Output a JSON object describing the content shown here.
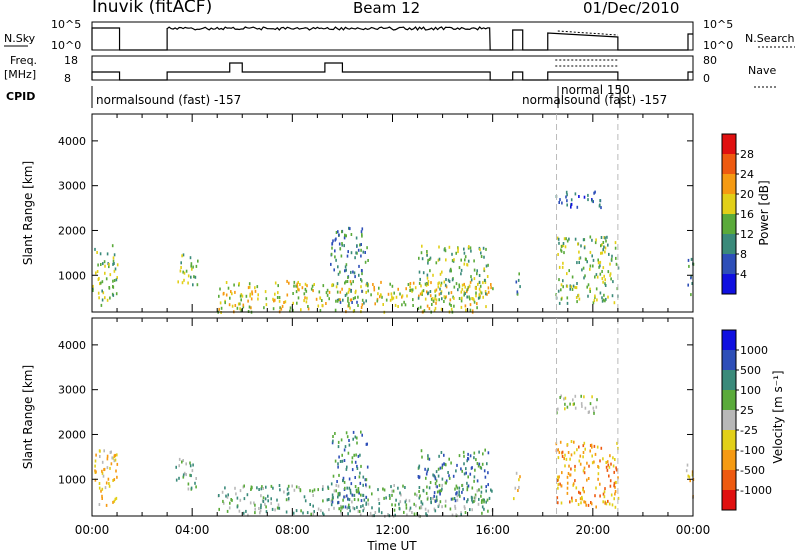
{
  "header": {
    "station": "Inuvik (fitACF)",
    "beam": "Beam 12",
    "date": "01/Dec/2010"
  },
  "labels": {
    "nsky": "N.Sky",
    "nsky_ticks": [
      "10^5",
      "10^0"
    ],
    "nsearch": "N.Search",
    "nsearch_ticks": [
      "10^5",
      "10^0"
    ],
    "freq": "Freq.",
    "freq_unit": "[MHz]",
    "freq_ticks": [
      "18",
      "8"
    ],
    "nave": "Nave",
    "nave_ticks": [
      "80",
      "0"
    ],
    "cpid": "CPID",
    "cpid_events": [
      "normalsound (fast) -157",
      "normal 150",
      "normalsound (fast) -157"
    ],
    "xlabel": "Time UT",
    "xticks": [
      "00:00",
      "04:00",
      "08:00",
      "12:00",
      "16:00",
      "20:00",
      "00:00"
    ],
    "ylabel": "Slant Range [km]",
    "yticks": [
      "1000",
      "2000",
      "3000",
      "4000"
    ],
    "power_label": "Power [dB]",
    "power_ticks": [
      "4",
      "8",
      "12",
      "16",
      "20",
      "24",
      "28"
    ],
    "velocity_label": "Velocity [m s⁻¹]",
    "velocity_ticks": [
      "-1000",
      "-500",
      "-100",
      "-25",
      "25",
      "100",
      "500",
      "1000"
    ]
  },
  "chart_data": [
    {
      "type": "heatmap",
      "title": "Power",
      "xlabel": "Time UT",
      "ylabel": "Slant Range [km]",
      "xlim_hours": [
        0,
        24
      ],
      "ylim_km": [
        180,
        4600
      ],
      "colorbar": {
        "label": "Power [dB]",
        "ticks": [
          4,
          8,
          12,
          16,
          20,
          24,
          28
        ],
        "colors": [
          "#1010e0",
          "#2e4fb8",
          "#3a8a7a",
          "#5aaa3a",
          "#e2cf18",
          "#f59a12",
          "#ee5a10",
          "#e01010"
        ]
      },
      "scatter_regions": [
        {
          "t": [
            0.0,
            1.0
          ],
          "r": [
            350,
            1700
          ],
          "level": 3
        },
        {
          "t": [
            3.3,
            4.2
          ],
          "r": [
            800,
            1500
          ],
          "level": 3
        },
        {
          "t": [
            5.0,
            16.0
          ],
          "r": [
            200,
            900
          ],
          "level": 4
        },
        {
          "t": [
            9.5,
            11.0
          ],
          "r": [
            400,
            2100
          ],
          "level": 2
        },
        {
          "t": [
            13.0,
            15.8
          ],
          "r": [
            500,
            1700
          ],
          "level": 3
        },
        {
          "t": [
            16.8,
            17.1
          ],
          "r": [
            600,
            1200
          ],
          "level": 2
        },
        {
          "t": [
            18.5,
            21.0
          ],
          "r": [
            400,
            1900
          ],
          "level": 3
        },
        {
          "t": [
            18.5,
            20.3
          ],
          "r": [
            2500,
            2900
          ],
          "level": 1
        },
        {
          "t": [
            23.7,
            24.0
          ],
          "r": [
            600,
            1400
          ],
          "level": 2
        }
      ]
    },
    {
      "type": "heatmap",
      "title": "Velocity",
      "xlabel": "Time UT",
      "ylabel": "Slant Range [km]",
      "xlim_hours": [
        0,
        24
      ],
      "ylim_km": [
        180,
        4600
      ],
      "colorbar": {
        "label": "Velocity [m s⁻¹]",
        "ticks": [
          -1000,
          -500,
          -100,
          -25,
          25,
          100,
          500,
          1000
        ],
        "colors": [
          "#e01010",
          "#ee5a10",
          "#f59a12",
          "#e2cf18",
          "#b8b8b8",
          "#5aaa3a",
          "#3a8a7a",
          "#2e4fb8",
          "#1010e0"
        ]
      },
      "scatter_regions": [
        {
          "t": [
            0.0,
            1.0
          ],
          "r": [
            350,
            1700
          ],
          "level": 3
        },
        {
          "t": [
            3.3,
            4.2
          ],
          "r": [
            800,
            1500
          ],
          "level": 5
        },
        {
          "t": [
            5.0,
            16.0
          ],
          "r": [
            200,
            900
          ],
          "level": 5
        },
        {
          "t": [
            9.5,
            11.0
          ],
          "r": [
            400,
            2100
          ],
          "level": 6
        },
        {
          "t": [
            13.0,
            15.8
          ],
          "r": [
            500,
            1700
          ],
          "level": 6
        },
        {
          "t": [
            16.8,
            17.1
          ],
          "r": [
            600,
            1200
          ],
          "level": 3
        },
        {
          "t": [
            18.5,
            21.0
          ],
          "r": [
            400,
            1900
          ],
          "level": 2
        },
        {
          "t": [
            18.5,
            20.3
          ],
          "r": [
            2500,
            2900
          ],
          "level": 4
        },
        {
          "t": [
            23.7,
            24.0
          ],
          "r": [
            600,
            1400
          ],
          "level": 3
        }
      ]
    }
  ]
}
